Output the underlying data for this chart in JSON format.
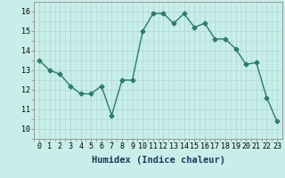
{
  "x": [
    0,
    1,
    2,
    3,
    4,
    5,
    6,
    7,
    8,
    9,
    10,
    11,
    12,
    13,
    14,
    15,
    16,
    17,
    18,
    19,
    20,
    21,
    22,
    23
  ],
  "y": [
    13.5,
    13.0,
    12.8,
    12.2,
    11.8,
    11.8,
    12.2,
    10.7,
    12.5,
    12.5,
    15.0,
    15.9,
    15.9,
    15.4,
    15.9,
    15.2,
    15.4,
    14.6,
    14.6,
    14.1,
    13.3,
    13.4,
    11.6,
    10.4
  ],
  "xlim": [
    -0.5,
    23.5
  ],
  "ylim": [
    10,
    16.5
  ],
  "yticks": [
    10,
    11,
    12,
    13,
    14,
    15,
    16
  ],
  "xticks": [
    0,
    1,
    2,
    3,
    4,
    5,
    6,
    7,
    8,
    9,
    10,
    11,
    12,
    13,
    14,
    15,
    16,
    17,
    18,
    19,
    20,
    21,
    22,
    23
  ],
  "xlabel": "Humidex (Indice chaleur)",
  "line_color": "#2d7a6a",
  "marker": "D",
  "marker_size": 2.5,
  "bg_color": "#c8eeea",
  "grid_color": "#b0d8d4",
  "xlabel_fontsize": 7.5,
  "tick_fontsize": 6,
  "linewidth": 1.0
}
